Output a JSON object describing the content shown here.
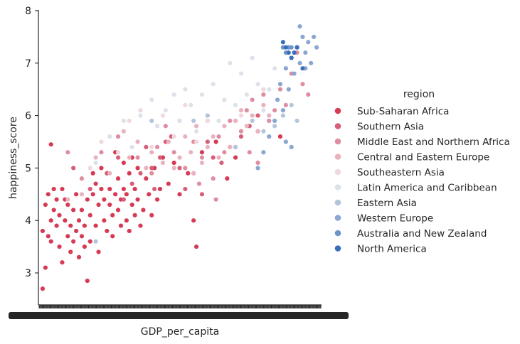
{
  "chart_data": {
    "type": "scatter",
    "xlabel": "GDP_per_capita",
    "ylabel": "happiness_score",
    "ylim": [
      2.35,
      8.0
    ],
    "yticks": [
      3,
      4,
      5,
      6,
      7,
      8
    ],
    "x_tick_labels_note": "categorical x axis with hundreds of overlapping tick labels (unreadable)",
    "legend": {
      "title": "region",
      "placement": "right"
    },
    "series": [
      {
        "name": "Sub-Saharan Africa",
        "color": "#d63a54",
        "points": [
          [
            0.01,
            2.7
          ],
          [
            0.01,
            3.8
          ],
          [
            0.02,
            3.1
          ],
          [
            0.02,
            4.3
          ],
          [
            0.03,
            3.7
          ],
          [
            0.03,
            4.5
          ],
          [
            0.04,
            4.0
          ],
          [
            0.04,
            3.6
          ],
          [
            0.05,
            4.6
          ],
          [
            0.05,
            4.2
          ],
          [
            0.06,
            3.9
          ],
          [
            0.06,
            4.4
          ],
          [
            0.07,
            4.1
          ],
          [
            0.07,
            3.5
          ],
          [
            0.08,
            4.6
          ],
          [
            0.08,
            3.2
          ],
          [
            0.09,
            4.0
          ],
          [
            0.09,
            4.4
          ],
          [
            0.1,
            3.7
          ],
          [
            0.1,
            4.3
          ],
          [
            0.11,
            3.4
          ],
          [
            0.11,
            3.9
          ],
          [
            0.12,
            4.2
          ],
          [
            0.12,
            3.6
          ],
          [
            0.13,
            4.5
          ],
          [
            0.13,
            3.8
          ],
          [
            0.14,
            4.0
          ],
          [
            0.14,
            3.3
          ],
          [
            0.15,
            3.7
          ],
          [
            0.15,
            4.2
          ],
          [
            0.16,
            3.5
          ],
          [
            0.16,
            3.9
          ],
          [
            0.17,
            2.85
          ],
          [
            0.17,
            4.4
          ],
          [
            0.18,
            4.1
          ],
          [
            0.18,
            3.6
          ],
          [
            0.19,
            4.5
          ],
          [
            0.19,
            4.9
          ],
          [
            0.2,
            3.9
          ],
          [
            0.2,
            4.7
          ],
          [
            0.21,
            3.4
          ],
          [
            0.21,
            4.3
          ],
          [
            0.22,
            4.6
          ],
          [
            0.22,
            5.0
          ],
          [
            0.23,
            4.0
          ],
          [
            0.23,
            4.4
          ],
          [
            0.24,
            3.8
          ],
          [
            0.24,
            4.9
          ],
          [
            0.25,
            4.3
          ],
          [
            0.25,
            4.6
          ],
          [
            0.26,
            4.1
          ],
          [
            0.26,
            3.7
          ],
          [
            0.27,
            4.5
          ],
          [
            0.27,
            5.3
          ],
          [
            0.28,
            4.2
          ],
          [
            0.28,
            4.8
          ],
          [
            0.29,
            3.9
          ],
          [
            0.29,
            4.4
          ],
          [
            0.3,
            4.6
          ],
          [
            0.3,
            5.1
          ],
          [
            0.31,
            4.0
          ],
          [
            0.31,
            4.5
          ],
          [
            0.32,
            3.8
          ],
          [
            0.32,
            4.9
          ],
          [
            0.33,
            4.3
          ],
          [
            0.33,
            5.2
          ],
          [
            0.34,
            4.1
          ],
          [
            0.34,
            4.6
          ],
          [
            0.35,
            4.4
          ],
          [
            0.35,
            5.0
          ],
          [
            0.36,
            3.9
          ],
          [
            0.37,
            4.2
          ],
          [
            0.38,
            4.8
          ],
          [
            0.39,
            4.5
          ],
          [
            0.4,
            4.1
          ],
          [
            0.41,
            5.0
          ],
          [
            0.42,
            4.4
          ],
          [
            0.43,
            4.6
          ],
          [
            0.44,
            5.2
          ],
          [
            0.46,
            4.7
          ],
          [
            0.48,
            5.1
          ],
          [
            0.5,
            4.5
          ],
          [
            0.53,
            4.9
          ],
          [
            0.58,
            5.3
          ],
          [
            0.63,
            5.5
          ],
          [
            0.67,
            4.8
          ],
          [
            0.7,
            5.2
          ],
          [
            0.78,
            5.7
          ],
          [
            0.86,
            5.6
          ],
          [
            0.04,
            5.45
          ],
          [
            0.56,
            3.5
          ],
          [
            0.55,
            4.0
          ]
        ]
      },
      {
        "name": "Southern Asia",
        "color": "#d75f78",
        "points": [
          [
            0.12,
            5.0
          ],
          [
            0.18,
            4.6
          ],
          [
            0.24,
            4.9
          ],
          [
            0.28,
            5.2
          ],
          [
            0.3,
            4.4
          ],
          [
            0.33,
            4.7
          ],
          [
            0.36,
            4.9
          ],
          [
            0.38,
            5.4
          ],
          [
            0.4,
            5.0
          ],
          [
            0.41,
            4.6
          ],
          [
            0.43,
            5.2
          ],
          [
            0.45,
            5.5
          ],
          [
            0.47,
            5.6
          ],
          [
            0.5,
            5.0
          ],
          [
            0.52,
            4.6
          ],
          [
            0.55,
            4.9
          ],
          [
            0.58,
            4.5
          ],
          [
            0.6,
            5.5
          ],
          [
            0.62,
            5.2
          ],
          [
            0.65,
            5.1
          ],
          [
            0.68,
            5.4
          ],
          [
            0.72,
            5.6
          ],
          [
            0.75,
            5.8
          ],
          [
            0.78,
            6.0
          ]
        ]
      },
      {
        "name": "Middle East and Northern Africa",
        "color": "#df8da1",
        "points": [
          [
            0.1,
            5.3
          ],
          [
            0.15,
            4.8
          ],
          [
            0.22,
            5.3
          ],
          [
            0.28,
            5.6
          ],
          [
            0.35,
            5.2
          ],
          [
            0.4,
            4.9
          ],
          [
            0.42,
            5.4
          ],
          [
            0.45,
            5.8
          ],
          [
            0.48,
            5.3
          ],
          [
            0.5,
            5.9
          ],
          [
            0.52,
            5.0
          ],
          [
            0.55,
            5.5
          ],
          [
            0.57,
            4.7
          ],
          [
            0.58,
            5.2
          ],
          [
            0.6,
            5.9
          ],
          [
            0.62,
            4.8
          ],
          [
            0.63,
            4.4
          ],
          [
            0.64,
            5.6
          ],
          [
            0.66,
            5.3
          ],
          [
            0.68,
            5.9
          ],
          [
            0.7,
            5.4
          ],
          [
            0.72,
            5.7
          ],
          [
            0.74,
            6.1
          ],
          [
            0.75,
            5.3
          ],
          [
            0.76,
            6.3
          ],
          [
            0.78,
            5.1
          ],
          [
            0.8,
            6.4
          ],
          [
            0.82,
            5.9
          ],
          [
            0.84,
            6.1
          ],
          [
            0.86,
            6.5
          ],
          [
            0.88,
            6.2
          ],
          [
            0.9,
            6.8
          ],
          [
            0.92,
            7.2
          ],
          [
            0.94,
            6.6
          ],
          [
            0.96,
            6.4
          ]
        ]
      },
      {
        "name": "Central and Eastern Europe",
        "color": "#e9b2bf",
        "points": [
          [
            0.1,
            4.4
          ],
          [
            0.15,
            4.5
          ],
          [
            0.2,
            5.2
          ],
          [
            0.25,
            4.9
          ],
          [
            0.3,
            5.7
          ],
          [
            0.32,
            5.2
          ],
          [
            0.35,
            5.5
          ],
          [
            0.38,
            5.0
          ],
          [
            0.4,
            5.3
          ],
          [
            0.42,
            5.8
          ],
          [
            0.44,
            5.1
          ],
          [
            0.46,
            5.5
          ],
          [
            0.48,
            5.0
          ],
          [
            0.5,
            5.2
          ],
          [
            0.52,
            5.6
          ],
          [
            0.54,
            5.3
          ],
          [
            0.55,
            4.9
          ],
          [
            0.56,
            5.8
          ],
          [
            0.58,
            5.1
          ],
          [
            0.6,
            5.4
          ],
          [
            0.62,
            5.6
          ],
          [
            0.64,
            5.2
          ],
          [
            0.66,
            5.8
          ],
          [
            0.68,
            5.4
          ],
          [
            0.7,
            5.9
          ],
          [
            0.72,
            6.1
          ],
          [
            0.74,
            5.8
          ],
          [
            0.76,
            6.0
          ],
          [
            0.78,
            5.7
          ],
          [
            0.8,
            6.2
          ],
          [
            0.82,
            6.0
          ]
        ]
      },
      {
        "name": "Southeastern Asia",
        "color": "#efd8de",
        "points": [
          [
            0.18,
            5.0
          ],
          [
            0.22,
            5.5
          ],
          [
            0.28,
            5.3
          ],
          [
            0.32,
            5.9
          ],
          [
            0.36,
            6.1
          ],
          [
            0.4,
            5.4
          ],
          [
            0.44,
            6.0
          ],
          [
            0.48,
            5.6
          ],
          [
            0.52,
            6.2
          ],
          [
            0.56,
            5.5
          ],
          [
            0.6,
            5.9
          ],
          [
            0.66,
            6.3
          ],
          [
            0.72,
            6.0
          ],
          [
            0.8,
            6.5
          ],
          [
            0.88,
            6.9
          ]
        ]
      },
      {
        "name": "Latin America and Caribbean",
        "color": "#dde2ea",
        "points": [
          [
            0.2,
            5.1
          ],
          [
            0.25,
            5.6
          ],
          [
            0.3,
            5.9
          ],
          [
            0.33,
            5.4
          ],
          [
            0.36,
            6.0
          ],
          [
            0.4,
            6.3
          ],
          [
            0.42,
            5.8
          ],
          [
            0.45,
            6.1
          ],
          [
            0.48,
            6.4
          ],
          [
            0.5,
            5.9
          ],
          [
            0.52,
            6.5
          ],
          [
            0.54,
            6.2
          ],
          [
            0.56,
            5.7
          ],
          [
            0.58,
            6.4
          ],
          [
            0.6,
            6.0
          ],
          [
            0.62,
            6.6
          ],
          [
            0.64,
            5.9
          ],
          [
            0.66,
            6.3
          ],
          [
            0.68,
            7.0
          ],
          [
            0.7,
            6.2
          ],
          [
            0.72,
            6.8
          ],
          [
            0.74,
            6.4
          ],
          [
            0.76,
            7.1
          ],
          [
            0.78,
            6.6
          ],
          [
            0.8,
            6.1
          ],
          [
            0.82,
            6.5
          ],
          [
            0.84,
            6.9
          ]
        ]
      },
      {
        "name": "Eastern Asia",
        "color": "#b3c5dd",
        "points": [
          [
            0.2,
            3.6
          ],
          [
            0.4,
            5.9
          ],
          [
            0.55,
            5.9
          ],
          [
            0.6,
            6.0
          ],
          [
            0.7,
            5.4
          ],
          [
            0.76,
            5.9
          ],
          [
            0.8,
            5.7
          ],
          [
            0.84,
            5.8
          ],
          [
            0.87,
            6.0
          ],
          [
            0.9,
            6.2
          ],
          [
            0.92,
            5.9
          ]
        ]
      },
      {
        "name": "Western Europe",
        "color": "#8aa7d1",
        "points": [
          [
            0.78,
            5.0
          ],
          [
            0.8,
            5.3
          ],
          [
            0.82,
            5.6
          ],
          [
            0.84,
            5.9
          ],
          [
            0.85,
            6.3
          ],
          [
            0.86,
            6.6
          ],
          [
            0.87,
            6.1
          ],
          [
            0.88,
            6.9
          ],
          [
            0.89,
            6.5
          ],
          [
            0.9,
            7.1
          ],
          [
            0.91,
            6.8
          ],
          [
            0.92,
            7.3
          ],
          [
            0.93,
            7.0
          ],
          [
            0.94,
            7.5
          ],
          [
            0.95,
            7.2
          ],
          [
            0.96,
            7.4
          ],
          [
            0.97,
            7.0
          ],
          [
            0.98,
            7.5
          ],
          [
            0.99,
            7.3
          ],
          [
            0.93,
            7.7
          ],
          [
            0.95,
            6.9
          ],
          [
            0.88,
            5.5
          ],
          [
            0.9,
            5.4
          ]
        ]
      },
      {
        "name": "Australia and New Zealand",
        "color": "#6f95c8",
        "points": [
          [
            0.87,
            7.3
          ],
          [
            0.88,
            7.2
          ],
          [
            0.89,
            7.3
          ],
          [
            0.9,
            7.3
          ],
          [
            0.91,
            7.2
          ],
          [
            0.92,
            7.3
          ]
        ]
      },
      {
        "name": "North America",
        "color": "#3b6fb8",
        "points": [
          [
            0.87,
            7.4
          ],
          [
            0.88,
            7.3
          ],
          [
            0.89,
            7.2
          ],
          [
            0.9,
            7.1
          ],
          [
            0.91,
            7.2
          ],
          [
            0.92,
            7.3
          ],
          [
            0.94,
            6.9
          ]
        ]
      }
    ]
  }
}
